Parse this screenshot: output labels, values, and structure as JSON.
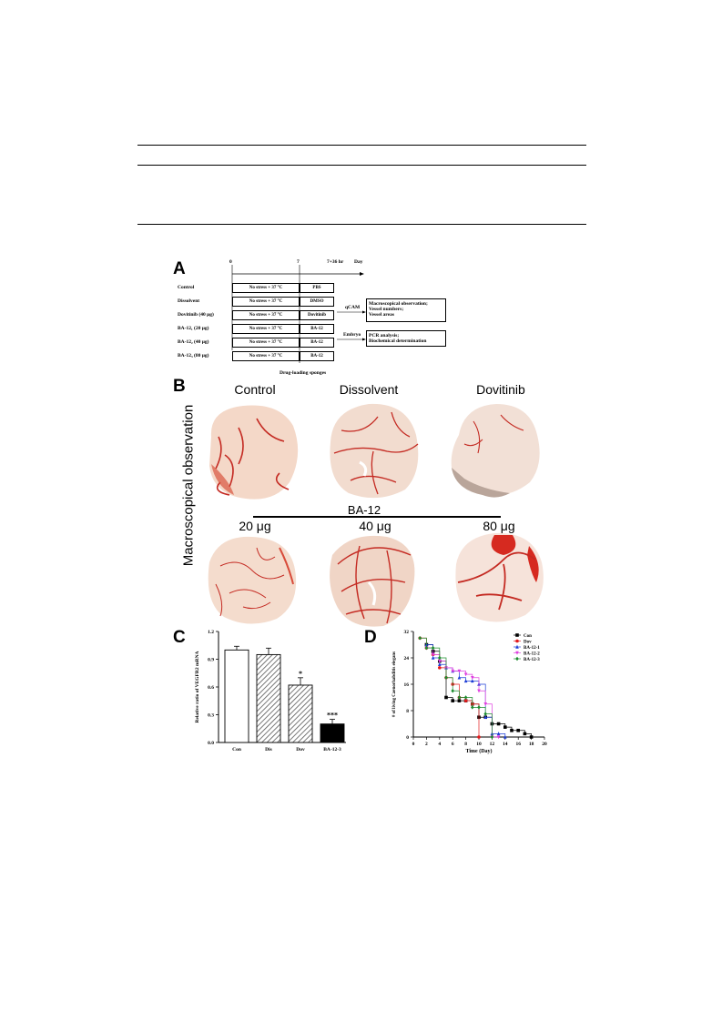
{
  "panels": {
    "a": "A",
    "b": "B",
    "c": "C",
    "d": "D"
  },
  "timeline": {
    "t0": "0",
    "t7": "7",
    "tend": "7+36 hr",
    "day": "Day",
    "groups": [
      {
        "name": "Control",
        "stress": "No stress + 37 °C",
        "drug": "PBS"
      },
      {
        "name": "Dissolvent",
        "stress": "No stress + 37 °C",
        "drug": "DMSO"
      },
      {
        "name": "Dovitinib (40 μg)",
        "stress": "No stress + 37 °C",
        "drug": "Dovitinib"
      },
      {
        "name": "BA-12₁ (20 μg)",
        "stress": "No stress + 37 °C",
        "drug": "BA-12"
      },
      {
        "name": "BA-12₂ (40 μg)",
        "stress": "No stress + 37 °C",
        "drug": "BA-12"
      },
      {
        "name": "BA-12₃ (80 μg)",
        "stress": "No stress + 37 °C",
        "drug": "BA-12"
      }
    ],
    "qcam": "qCAM",
    "embryo": "Embryo",
    "obs": [
      "Macroscopical observation;",
      "Vessel numbers;",
      "Vessel areas"
    ],
    "pcr": [
      "PCR analysis;",
      "Biochemical determination"
    ],
    "sponge": "Drug-loading sponges"
  },
  "photos": {
    "control": "Control",
    "dissolvent": "Dissolvent",
    "dovitinib": "Dovitinib",
    "ba12": "BA-12",
    "d20": "20 μg",
    "d40": "40 μg",
    "d80": "80 μg",
    "side": "Macroscopical observation"
  },
  "colors": {
    "tissue": "#f3d7c8",
    "vessel": "#c42a22",
    "bar_black": "#000000"
  },
  "chart_data": [
    {
      "type": "bar",
      "categories": [
        "Con",
        "Dis",
        "Dov",
        "BA-12-3"
      ],
      "values": [
        1.0,
        0.95,
        0.62,
        0.2
      ],
      "errors": [
        0.04,
        0.07,
        0.08,
        0.05
      ],
      "significance": [
        "",
        "",
        "*",
        "***"
      ],
      "ylabel": "Relative ratio of VEGFR2 mRNA",
      "ylim": [
        0,
        1.2
      ],
      "yticks": [
        "0.0",
        "0.3",
        "0.6",
        "0.9",
        "1.2"
      ]
    },
    {
      "type": "line",
      "xlabel": "Time (Day)",
      "ylabel": "# of living Caenorhabditis elegans",
      "xlim": [
        0,
        20
      ],
      "ylim": [
        0,
        32
      ],
      "xticks": [
        "0",
        "2",
        "4",
        "6",
        "8",
        "10",
        "12",
        "14",
        "16",
        "18",
        "20"
      ],
      "yticks": [
        "0",
        "8",
        "16",
        "24",
        "32"
      ],
      "series": [
        {
          "name": "Con",
          "color": "#000000",
          "marker": "square",
          "x": [
            2,
            3,
            4,
            5,
            6,
            7,
            8,
            9,
            10,
            11,
            12,
            13,
            14,
            15,
            16,
            17,
            18
          ],
          "y": [
            28,
            26,
            23,
            12,
            11,
            11,
            11,
            10,
            6,
            6,
            4,
            4,
            3,
            2,
            2,
            1,
            0
          ]
        },
        {
          "name": "Dov",
          "color": "#e31a1c",
          "marker": "circle",
          "x": [
            1,
            2,
            3,
            4,
            5,
            6,
            7,
            8,
            9,
            10
          ],
          "y": [
            30,
            27,
            25,
            21,
            18,
            16,
            12,
            11,
            10,
            0
          ]
        },
        {
          "name": "BA-12-1",
          "color": "#1f3fd6",
          "marker": "triangle-up",
          "x": [
            2,
            3,
            4,
            5,
            6,
            7,
            8,
            9,
            10,
            11,
            12,
            13,
            14
          ],
          "y": [
            28,
            24,
            22,
            21,
            20,
            18,
            17,
            17,
            16,
            6,
            1,
            1,
            0
          ]
        },
        {
          "name": "BA-12-2",
          "color": "#e040e0",
          "marker": "triangle-down",
          "x": [
            2,
            3,
            4,
            5,
            6,
            7,
            8,
            9,
            10,
            11,
            12,
            13
          ],
          "y": [
            27,
            25,
            23,
            21,
            20,
            20,
            19,
            18,
            14,
            10,
            0,
            0
          ]
        },
        {
          "name": "BA-12-3",
          "color": "#1c8c2e",
          "marker": "diamond",
          "x": [
            1,
            2,
            3,
            4,
            5,
            6,
            7,
            8,
            9,
            10,
            11,
            12
          ],
          "y": [
            30,
            27,
            27,
            24,
            18,
            14,
            12,
            12,
            9,
            9,
            7,
            0
          ]
        }
      ]
    }
  ]
}
